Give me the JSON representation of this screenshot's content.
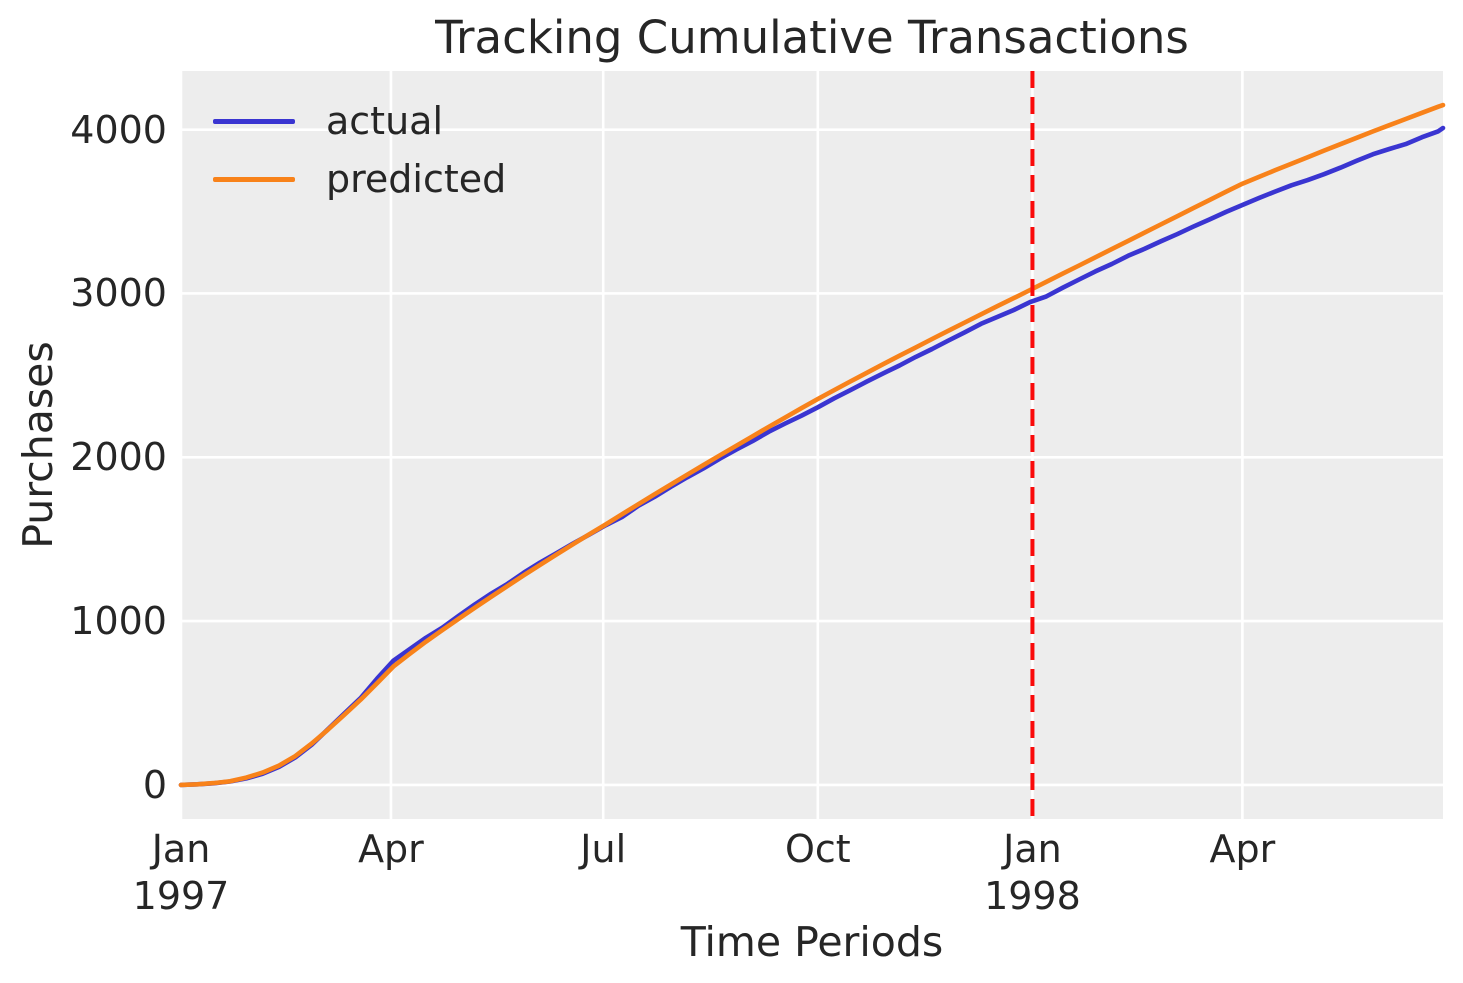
{
  "chart_data": {
    "type": "line",
    "title": "Tracking Cumulative Transactions",
    "xlabel": "Time Periods",
    "ylabel": "Purchases",
    "legend_position": "upper left",
    "grid": true,
    "plot_bg_color": "#ededed",
    "grid_color": "#ffffff",
    "text_color": "#262626",
    "x_unit": "days since 1997-01-01 (weekly sampling)",
    "x_domain_days": [
      0,
      541
    ],
    "y_domain": [
      -208,
      4358
    ],
    "y_ticks": [
      0,
      1000,
      2000,
      3000,
      4000
    ],
    "x_ticks": [
      {
        "day": 0,
        "label": "Jan",
        "sublabel": "1997"
      },
      {
        "day": 90,
        "label": "Apr",
        "sublabel": ""
      },
      {
        "day": 181,
        "label": "Jul",
        "sublabel": ""
      },
      {
        "day": 273,
        "label": "Oct",
        "sublabel": ""
      },
      {
        "day": 365,
        "label": "Jan",
        "sublabel": "1998"
      },
      {
        "day": 455,
        "label": "Apr",
        "sublabel": ""
      }
    ],
    "vline": {
      "day": 365,
      "color": "#fa0a0a",
      "style": "dashed",
      "meaning": "calibration period end"
    },
    "days": [
      0,
      7,
      14,
      21,
      28,
      35,
      42,
      49,
      56,
      63,
      70,
      77,
      84,
      91,
      98,
      105,
      112,
      119,
      126,
      133,
      140,
      147,
      154,
      161,
      168,
      175,
      182,
      189,
      196,
      203,
      210,
      217,
      224,
      231,
      238,
      245,
      252,
      259,
      266,
      273,
      280,
      287,
      294,
      301,
      308,
      315,
      322,
      329,
      336,
      343,
      350,
      357,
      364,
      371,
      378,
      385,
      392,
      399,
      406,
      413,
      420,
      427,
      434,
      441,
      448,
      455,
      462,
      469,
      476,
      483,
      490,
      497,
      504,
      511,
      518,
      525,
      532,
      539,
      541
    ],
    "series": [
      {
        "name": "actual",
        "color": "#3a35d1",
        "values": [
          0,
          4,
          10,
          21,
          40,
          68,
          110,
          168,
          245,
          340,
          436,
          530,
          648,
          758,
          828,
          898,
          960,
          1032,
          1102,
          1168,
          1228,
          1296,
          1358,
          1415,
          1473,
          1528,
          1585,
          1635,
          1703,
          1758,
          1820,
          1878,
          1932,
          1992,
          2047,
          2099,
          2156,
          2206,
          2254,
          2305,
          2360,
          2410,
          2462,
          2512,
          2560,
          2613,
          2661,
          2713,
          2763,
          2815,
          2857,
          2899,
          2947,
          2982,
          3035,
          3085,
          3135,
          3180,
          3230,
          3272,
          3318,
          3362,
          3408,
          3452,
          3498,
          3540,
          3582,
          3622,
          3660,
          3692,
          3728,
          3768,
          3810,
          3850,
          3882,
          3912,
          3954,
          3990,
          4010
        ]
      },
      {
        "name": "predicted",
        "color": "#f8821a",
        "values": [
          0,
          4,
          11,
          22,
          45,
          75,
          118,
          176,
          252,
          338,
          428,
          520,
          620,
          722,
          800,
          874,
          945,
          1014,
          1082,
          1149,
          1215,
          1280,
          1344,
          1407,
          1469,
          1530,
          1590,
          1652,
          1713,
          1774,
          1834,
          1894,
          1953,
          2012,
          2070,
          2128,
          2186,
          2243,
          2300,
          2356,
          2410,
          2463,
          2516,
          2568,
          2620,
          2671,
          2722,
          2773,
          2823,
          2873,
          2923,
          2972,
          3021,
          3071,
          3121,
          3171,
          3221,
          3271,
          3321,
          3371,
          3421,
          3471,
          3521,
          3571,
          3621,
          3670,
          3711,
          3752,
          3792,
          3832,
          3872,
          3911,
          3950,
          3989,
          4027,
          4065,
          4103,
          4140,
          4150
        ]
      }
    ]
  }
}
